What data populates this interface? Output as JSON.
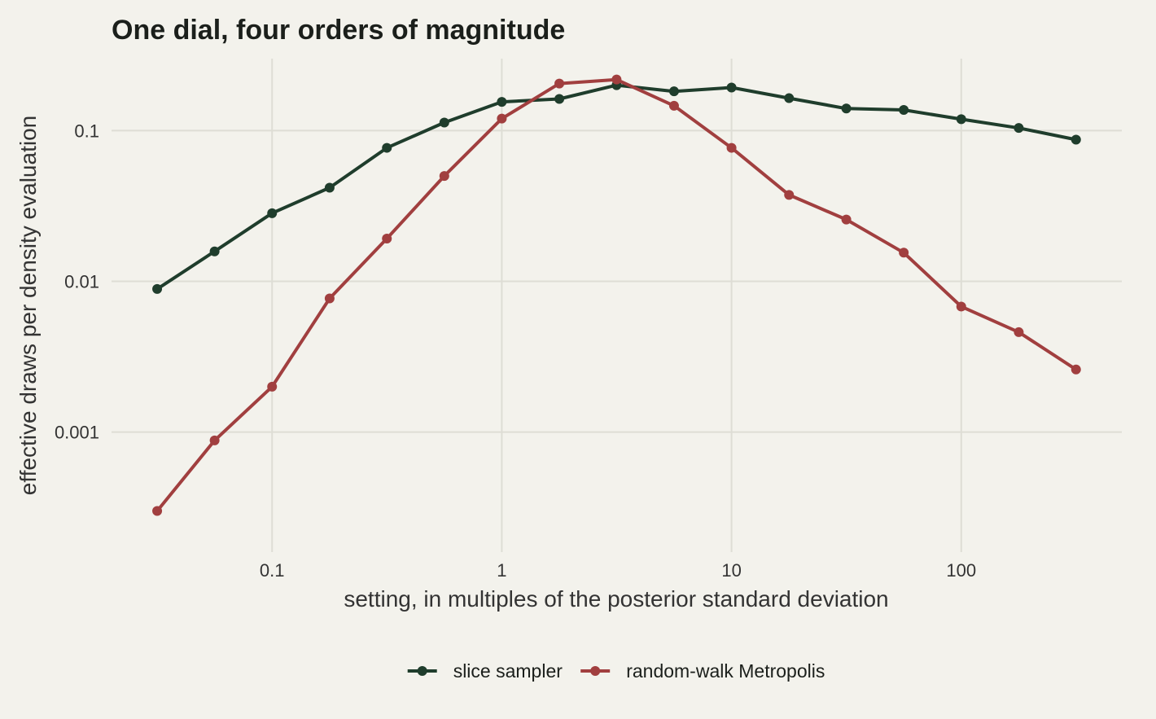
{
  "chart_data": {
    "type": "line",
    "title": "One dial, four orders of magnitude",
    "xlabel": "setting, in multiples of the posterior standard deviation",
    "ylabel": "effective draws per density evaluation",
    "x_scale": "log",
    "y_scale": "log",
    "xlim": [
      0.02,
      500
    ],
    "ylim": [
      0.00016,
      0.3
    ],
    "x_ticks": [
      0.1,
      1,
      10,
      100
    ],
    "x_tick_labels": [
      "0.1",
      "1",
      "10",
      "100"
    ],
    "y_ticks": [
      0.001,
      0.01,
      0.1
    ],
    "y_tick_labels": [
      "0.001",
      "0.01",
      "0.1"
    ],
    "grid": true,
    "legend_position": "bottom",
    "x": [
      0.0316,
      0.0562,
      0.1,
      0.178,
      0.316,
      0.562,
      1,
      1.78,
      3.16,
      5.62,
      10,
      17.8,
      31.6,
      56.2,
      100,
      178,
      316
    ],
    "series": [
      {
        "name": "slice sampler",
        "color": "#1f3d2c",
        "values": [
          0.0089,
          0.0158,
          0.0283,
          0.0418,
          0.0768,
          0.113,
          0.155,
          0.162,
          0.2,
          0.182,
          0.193,
          0.164,
          0.14,
          0.137,
          0.119,
          0.104,
          0.087
        ]
      },
      {
        "name": "random-walk Metropolis",
        "color": "#a13f3f",
        "values": [
          0.0003,
          0.00088,
          0.002,
          0.0077,
          0.0192,
          0.05,
          0.12,
          0.205,
          0.218,
          0.146,
          0.0768,
          0.0374,
          0.0257,
          0.0155,
          0.0068,
          0.0046,
          0.0026
        ]
      }
    ]
  }
}
